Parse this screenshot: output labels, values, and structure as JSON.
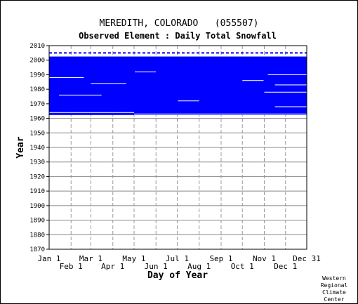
{
  "chart_data": {
    "type": "heatmap",
    "title": "MEREDITH, COLORADO   (055507)",
    "subtitle": "Observed Element : Daily Total Snowfall",
    "xlabel": "Day of Year",
    "ylabel": "Year",
    "x_ticks_top": [
      "Jan 1",
      "Mar 1",
      "May 1",
      "Jul 1",
      "Sep 1",
      "Nov 1",
      "Dec 31"
    ],
    "x_ticks_bottom": [
      "Feb 1",
      "Apr 1",
      "Jun 1",
      "Aug 1",
      "Oct 1",
      "Dec 1"
    ],
    "y_ticks": [
      2010,
      2000,
      1990,
      1980,
      1970,
      1960,
      1950,
      1940,
      1930,
      1920,
      1910,
      1900,
      1890,
      1880,
      1870
    ],
    "xlim": [
      1,
      365
    ],
    "ylim": [
      1870,
      2010
    ],
    "grid": true,
    "data_color": "#0000ff",
    "period_of_record": {
      "start_year": 1963,
      "end_year": 2002
    },
    "data_rows": [
      {
        "year": 2002,
        "start_day": 1,
        "end_day": 365
      },
      {
        "year": 2001,
        "start_day": 1,
        "end_day": 365
      },
      {
        "year": 2000,
        "start_day": 1,
        "end_day": 365
      },
      {
        "year": 1999,
        "start_day": 1,
        "end_day": 365
      },
      {
        "year": 1998,
        "start_day": 1,
        "end_day": 365
      },
      {
        "year": 1997,
        "start_day": 1,
        "end_day": 365
      },
      {
        "year": 1996,
        "start_day": 1,
        "end_day": 365
      },
      {
        "year": 1995,
        "start_day": 1,
        "end_day": 365
      },
      {
        "year": 1994,
        "start_day": 1,
        "end_day": 365
      },
      {
        "year": 1993,
        "start_day": 1,
        "end_day": 365
      },
      {
        "year": 1992,
        "start_day": 1,
        "end_day": 365
      },
      {
        "year": 1991,
        "start_day": 1,
        "end_day": 365
      },
      {
        "year": 1990,
        "start_day": 1,
        "end_day": 365
      },
      {
        "year": 1989,
        "start_day": 1,
        "end_day": 365
      },
      {
        "year": 1988,
        "start_day": 1,
        "end_day": 365
      },
      {
        "year": 1987,
        "start_day": 1,
        "end_day": 365
      },
      {
        "year": 1986,
        "start_day": 1,
        "end_day": 365
      },
      {
        "year": 1985,
        "start_day": 1,
        "end_day": 365
      },
      {
        "year": 1984,
        "start_day": 1,
        "end_day": 365
      },
      {
        "year": 1983,
        "start_day": 1,
        "end_day": 365
      },
      {
        "year": 1982,
        "start_day": 1,
        "end_day": 365
      },
      {
        "year": 1981,
        "start_day": 1,
        "end_day": 365
      },
      {
        "year": 1980,
        "start_day": 1,
        "end_day": 365
      },
      {
        "year": 1979,
        "start_day": 1,
        "end_day": 365
      },
      {
        "year": 1978,
        "start_day": 1,
        "end_day": 365
      },
      {
        "year": 1977,
        "start_day": 1,
        "end_day": 365
      },
      {
        "year": 1976,
        "start_day": 1,
        "end_day": 365
      },
      {
        "year": 1975,
        "start_day": 1,
        "end_day": 365
      },
      {
        "year": 1974,
        "start_day": 1,
        "end_day": 365
      },
      {
        "year": 1973,
        "start_day": 1,
        "end_day": 365
      },
      {
        "year": 1972,
        "start_day": 1,
        "end_day": 365
      },
      {
        "year": 1971,
        "start_day": 1,
        "end_day": 365
      },
      {
        "year": 1970,
        "start_day": 1,
        "end_day": 365
      },
      {
        "year": 1969,
        "start_day": 1,
        "end_day": 365
      },
      {
        "year": 1968,
        "start_day": 1,
        "end_day": 365
      },
      {
        "year": 1967,
        "start_day": 1,
        "end_day": 365
      },
      {
        "year": 1966,
        "start_day": 1,
        "end_day": 365
      },
      {
        "year": 1965,
        "start_day": 1,
        "end_day": 365
      },
      {
        "year": 1964,
        "start_day": 1,
        "end_day": 365
      },
      {
        "year": 1963,
        "start_day": 1,
        "end_day": 365
      }
    ],
    "missing_segments": [
      {
        "year": 1972,
        "start_day": 183,
        "end_day": 213
      },
      {
        "year": 1986,
        "start_day": 274,
        "end_day": 304
      },
      {
        "year": 1992,
        "start_day": 122,
        "end_day": 152
      },
      {
        "year": 1988,
        "start_day": 1,
        "end_day": 50
      },
      {
        "year": 1984,
        "start_day": 60,
        "end_day": 110
      },
      {
        "year": 1976,
        "start_day": 15,
        "end_day": 75
      },
      {
        "year": 1964,
        "start_day": 1,
        "end_day": 121
      },
      {
        "year": 1963,
        "start_day": 121,
        "end_day": 365
      },
      {
        "year": 1978,
        "start_day": 305,
        "end_day": 365
      },
      {
        "year": 1983,
        "start_day": 320,
        "end_day": 365
      },
      {
        "year": 1990,
        "start_day": 310,
        "end_day": 365
      },
      {
        "year": 1968,
        "start_day": 320,
        "end_day": 365
      }
    ]
  },
  "credit": [
    "Western",
    "Regional",
    "Climate",
    "Center"
  ]
}
